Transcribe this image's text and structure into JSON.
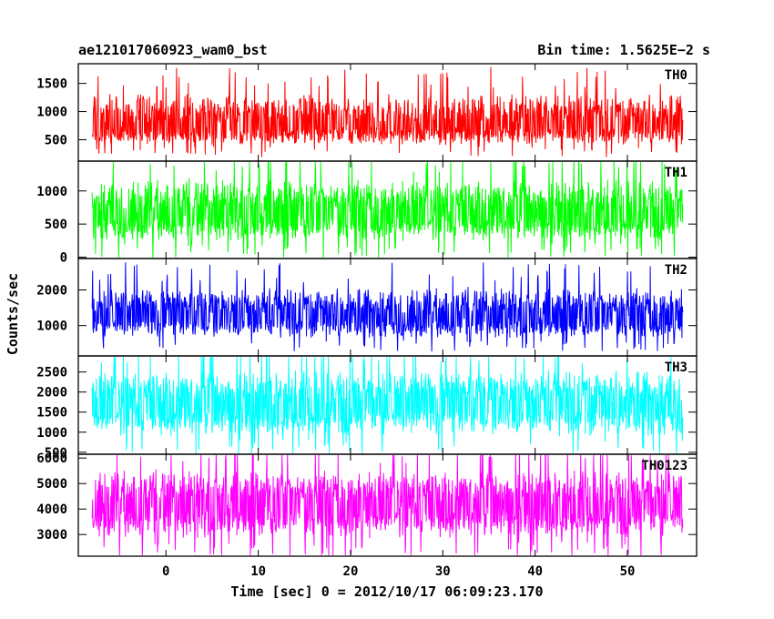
{
  "header": {
    "title": "ae121017060923_wam0_bst",
    "bin_time": "Bin time: 1.5625E−2 s"
  },
  "axes": {
    "xlabel": "Time [sec] 0 = 2012/10/17 06:09:23.170",
    "ylabel": "Counts/sec"
  },
  "chart_data": [
    {
      "type": "line",
      "name": "TH0",
      "color": "#ff0000",
      "x_range": [
        -8,
        56
      ],
      "xlim": [
        -9.5,
        57.5
      ],
      "ylim": [
        120,
        1850
      ],
      "yticks": [
        500,
        1000,
        1500
      ],
      "center": 750,
      "spread_low": 470,
      "spread_high": 780,
      "peak": 1840,
      "trough": 150
    },
    {
      "type": "line",
      "name": "TH1",
      "color": "#00ff00",
      "x_range": [
        -8,
        56
      ],
      "xlim": [
        -9.5,
        57.5
      ],
      "ylim": [
        -20,
        1450
      ],
      "yticks": [
        0,
        500,
        1000
      ],
      "center": 650,
      "spread_low": 560,
      "spread_high": 730,
      "peak": 1430,
      "trough": 0
    },
    {
      "type": "line",
      "name": "TH2",
      "color": "#0000ff",
      "x_range": [
        -8,
        56
      ],
      "xlim": [
        -9.5,
        57.5
      ],
      "ylim": [
        150,
        2880
      ],
      "yticks": [
        1000,
        2000
      ],
      "center": 1230,
      "spread_low": 800,
      "spread_high": 1150,
      "peak": 2650,
      "trough": 350
    },
    {
      "type": "line",
      "name": "TH3",
      "color": "#00ffff",
      "x_range": [
        -8,
        56
      ],
      "xlim": [
        -9.5,
        57.5
      ],
      "ylim": [
        450,
        2900
      ],
      "yticks": [
        500,
        1000,
        1500,
        2000,
        2500
      ],
      "center": 1650,
      "spread_low": 1050,
      "spread_high": 1250,
      "peak": 2900,
      "trough": 560
    },
    {
      "type": "line",
      "name": "TH0123",
      "color": "#ff00ff",
      "x_range": [
        -8,
        56
      ],
      "xlim": [
        -9.5,
        57.5
      ],
      "ylim": [
        2150,
        6150
      ],
      "yticks": [
        3000,
        4000,
        5000,
        6000
      ],
      "center": 4150,
      "spread_low": 1800,
      "spread_high": 1900,
      "peak": 6150,
      "trough": 2200
    }
  ],
  "xaxis": {
    "ticks": [
      0,
      10,
      20,
      30,
      40,
      50
    ]
  }
}
